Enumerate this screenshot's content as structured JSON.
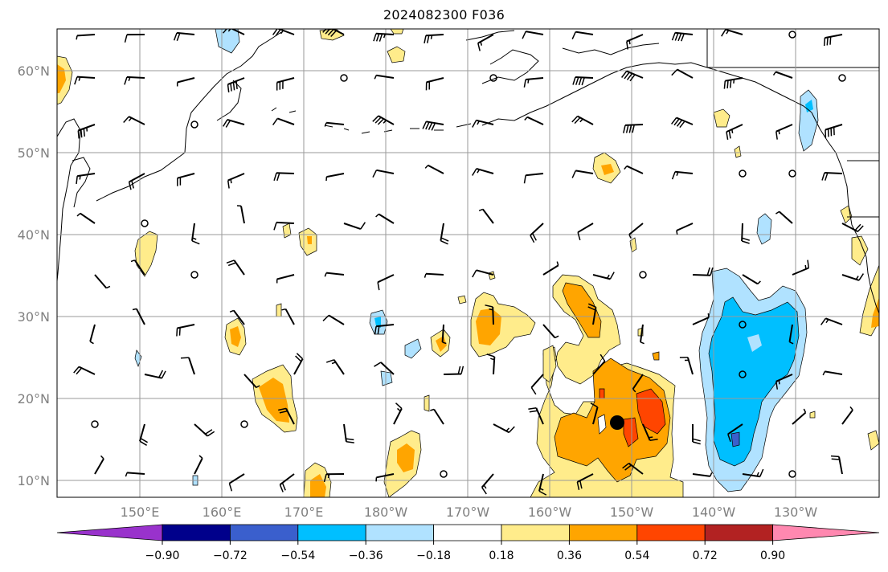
{
  "title": "2024082300 F036",
  "lat_labels": [
    "60°N",
    "50°N",
    "40°N",
    "30°N",
    "20°N",
    "10°N"
  ],
  "lon_labels": [
    "150°E",
    "160°E",
    "170°E",
    "180°W",
    "170°W",
    "160°W",
    "150°W",
    "140°W",
    "130°W"
  ],
  "colorbar": {
    "ticks": [
      "−0.90",
      "−0.72",
      "−0.54",
      "−0.36",
      "−0.18",
      "0.18",
      "0.36",
      "0.54",
      "0.72",
      "0.90"
    ],
    "colors": [
      "#9932cc",
      "#00008b",
      "#3a5fcd",
      "#00bfff",
      "#b0e2ff",
      "#ffffff",
      "#ffec8b",
      "#ffa500",
      "#ff4500",
      "#b22222",
      "#ff88b0"
    ]
  },
  "storm_marker": {
    "lon": "150°W (approx. 151°W)",
    "lat": "17°N"
  }
}
